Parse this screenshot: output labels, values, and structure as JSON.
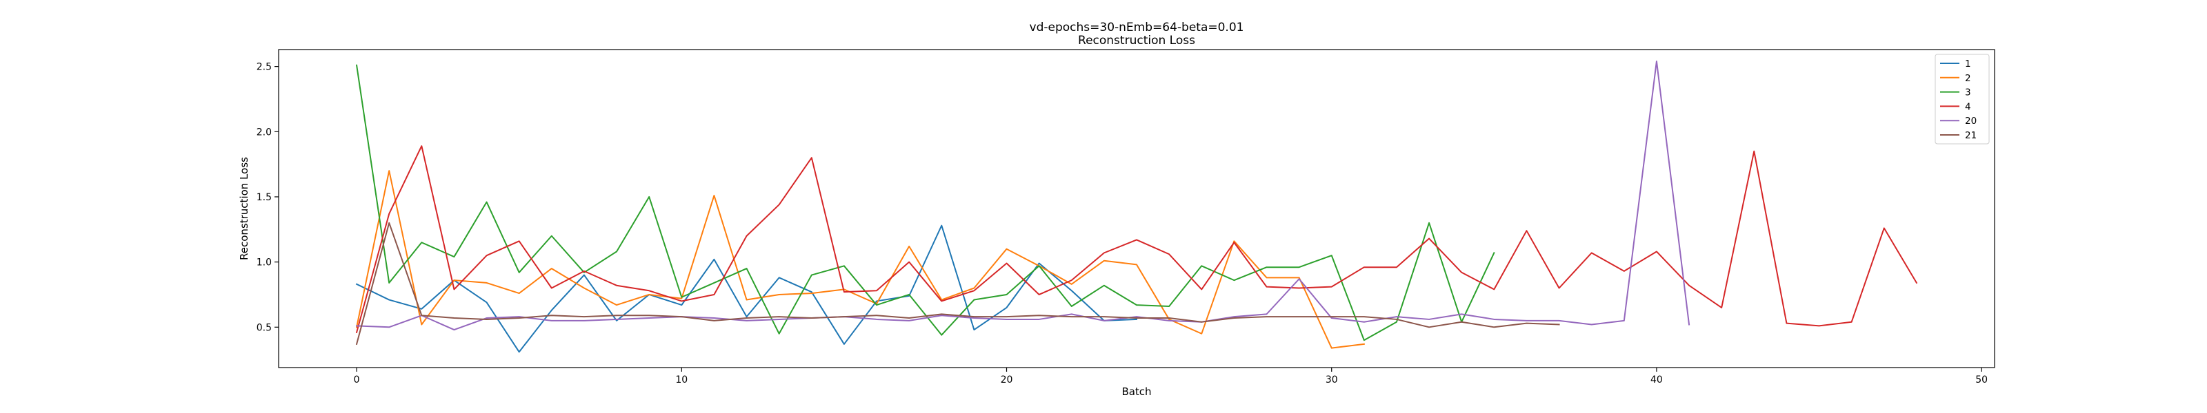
{
  "chart_data": {
    "type": "line",
    "title": "vd-epochs=30-nEmb=64-beta=0.01",
    "subtitle": "Reconstruction Loss",
    "xlabel": "Batch",
    "ylabel": "Reconstruction Loss",
    "xlim": [
      -2.4,
      50.4
    ],
    "ylim": [
      0.19,
      2.63
    ],
    "xticks": [
      0,
      10,
      20,
      30,
      40,
      50
    ],
    "yticks": [
      0.5,
      1.0,
      1.5,
      2.0,
      2.5
    ],
    "xtick_labels": [
      "0",
      "10",
      "20",
      "30",
      "40",
      "50"
    ],
    "ytick_labels": [
      "0.5",
      "1.0",
      "1.5",
      "2.0",
      "2.5"
    ],
    "grid": false,
    "legend_position": "top-right",
    "series": [
      {
        "name": "1",
        "color": "#1f77b4",
        "values": [
          0.83,
          0.71,
          0.64,
          0.86,
          0.69,
          0.31,
          0.63,
          0.9,
          0.55,
          0.75,
          0.67,
          1.02,
          0.58,
          0.88,
          0.77,
          0.37,
          0.7,
          0.74,
          1.28,
          0.48,
          0.65,
          0.99,
          0.78,
          0.55,
          0.56
        ]
      },
      {
        "name": "2",
        "color": "#ff7f0e",
        "values": [
          0.5,
          1.7,
          0.52,
          0.86,
          0.84,
          0.76,
          0.95,
          0.8,
          0.67,
          0.75,
          0.72,
          1.51,
          0.71,
          0.75,
          0.76,
          0.79,
          0.68,
          1.12,
          0.71,
          0.8,
          1.1,
          0.97,
          0.83,
          1.01,
          0.98,
          0.56,
          0.45,
          1.16,
          0.88,
          0.88,
          0.34,
          0.37
        ]
      },
      {
        "name": "3",
        "color": "#2ca02c",
        "values": [
          2.51,
          0.84,
          1.15,
          1.04,
          1.46,
          0.92,
          1.2,
          0.92,
          1.08,
          1.5,
          0.73,
          0.84,
          0.95,
          0.45,
          0.9,
          0.97,
          0.67,
          0.75,
          0.44,
          0.71,
          0.75,
          0.97,
          0.66,
          0.82,
          0.67,
          0.66,
          0.97,
          0.86,
          0.96,
          0.96,
          1.05,
          0.4,
          0.54,
          1.3,
          0.54,
          1.07
        ]
      },
      {
        "name": "4",
        "color": "#d62728",
        "values": [
          0.46,
          1.37,
          1.89,
          0.79,
          1.05,
          1.16,
          0.8,
          0.93,
          0.82,
          0.78,
          0.7,
          0.75,
          1.2,
          1.44,
          1.8,
          0.77,
          0.78,
          1.0,
          0.7,
          0.78,
          0.99,
          0.75,
          0.86,
          1.07,
          1.17,
          1.06,
          0.79,
          1.15,
          0.81,
          0.8,
          0.81,
          0.96,
          0.96,
          1.18,
          0.92,
          0.79,
          1.24,
          0.8,
          1.07,
          0.93,
          1.08,
          0.82,
          0.65,
          1.85,
          0.53,
          0.51,
          0.54,
          1.26,
          0.84
        ]
      },
      {
        "name": "20",
        "color": "#9467bd",
        "values": [
          0.51,
          0.5,
          0.59,
          0.48,
          0.57,
          0.58,
          0.55,
          0.55,
          0.56,
          0.57,
          0.58,
          0.57,
          0.55,
          0.56,
          0.57,
          0.58,
          0.56,
          0.55,
          0.59,
          0.57,
          0.56,
          0.56,
          0.6,
          0.55,
          0.58,
          0.55,
          0.54,
          0.58,
          0.6,
          0.87,
          0.57,
          0.54,
          0.58,
          0.56,
          0.6,
          0.56,
          0.55,
          0.55,
          0.52,
          0.55,
          2.54,
          0.52
        ]
      },
      {
        "name": "21",
        "color": "#8c564b",
        "values": [
          0.37,
          1.3,
          0.59,
          0.57,
          0.56,
          0.57,
          0.59,
          0.58,
          0.59,
          0.59,
          0.58,
          0.55,
          0.57,
          0.58,
          0.57,
          0.58,
          0.59,
          0.57,
          0.6,
          0.58,
          0.58,
          0.59,
          0.58,
          0.58,
          0.57,
          0.57,
          0.54,
          0.57,
          0.58,
          0.58,
          0.58,
          0.58,
          0.56,
          0.5,
          0.54,
          0.5,
          0.53,
          0.52
        ]
      }
    ]
  }
}
